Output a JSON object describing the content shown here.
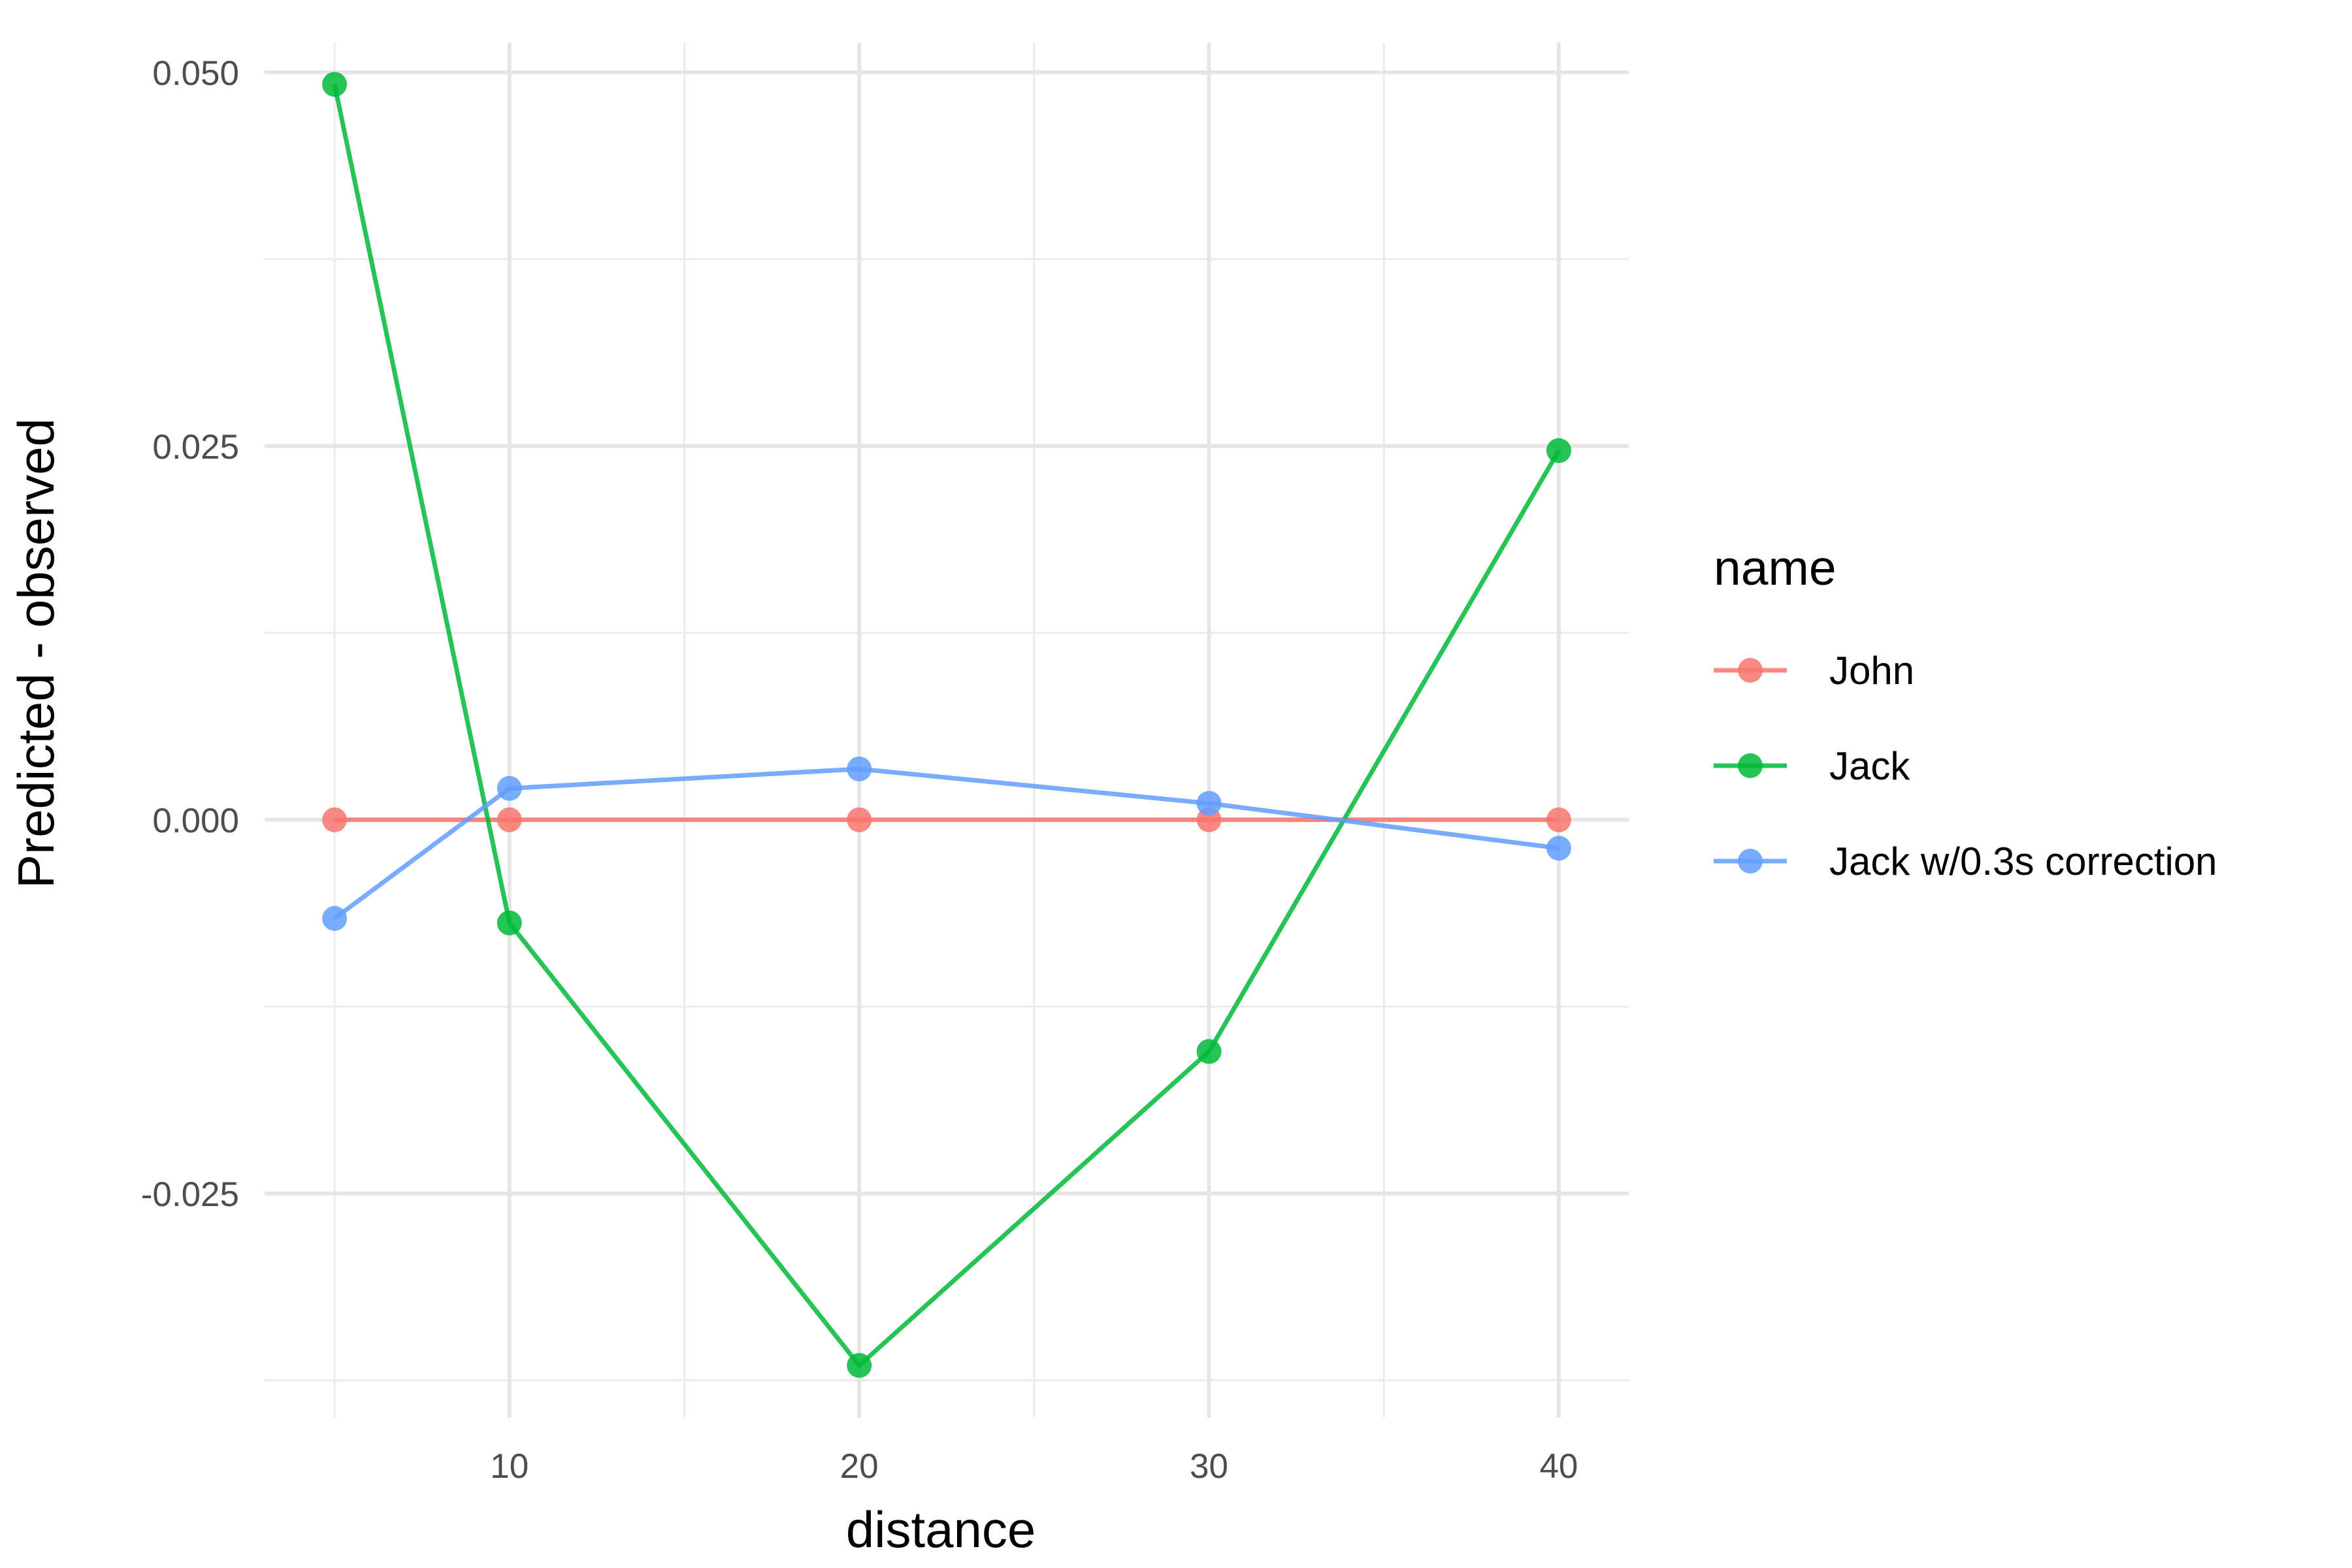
{
  "chart_data": {
    "type": "line",
    "title": "",
    "xlabel": "distance",
    "ylabel": "Predicted - observed",
    "xlim": [
      3,
      42
    ],
    "ylim": [
      -0.04,
      0.052
    ],
    "x_major_ticks": [
      10,
      20,
      30,
      40
    ],
    "x_minor_ticks": [
      5,
      15,
      25,
      35
    ],
    "x_tick_labels": [
      "10",
      "20",
      "30",
      "40"
    ],
    "y_major_ticks": [
      -0.025,
      0,
      0.025,
      0.05
    ],
    "y_minor_ticks": [
      -0.0375,
      -0.0125,
      0.0125,
      0.0375
    ],
    "y_tick_labels": [
      "-0.025",
      "0.000",
      "0.025",
      "0.050"
    ],
    "grid": true,
    "legend": {
      "title": "name",
      "position": "right"
    },
    "series": [
      {
        "name": "John",
        "color": "#F8766D",
        "x": [
          5,
          10,
          20,
          30,
          40
        ],
        "y": [
          0.0,
          0.0,
          0.0,
          0.0,
          0.0
        ]
      },
      {
        "name": "Jack",
        "color": "#00BA38",
        "x": [
          5,
          10,
          20,
          30,
          40
        ],
        "y": [
          0.0492,
          -0.0069,
          -0.0365,
          -0.0155,
          0.0247
        ]
      },
      {
        "name": "Jack w/0.3s correction",
        "color": "#619CFF",
        "x": [
          5,
          10,
          20,
          30,
          40
        ],
        "y": [
          -0.0066,
          0.0021,
          0.0034,
          0.0011,
          -0.0019
        ]
      }
    ]
  }
}
